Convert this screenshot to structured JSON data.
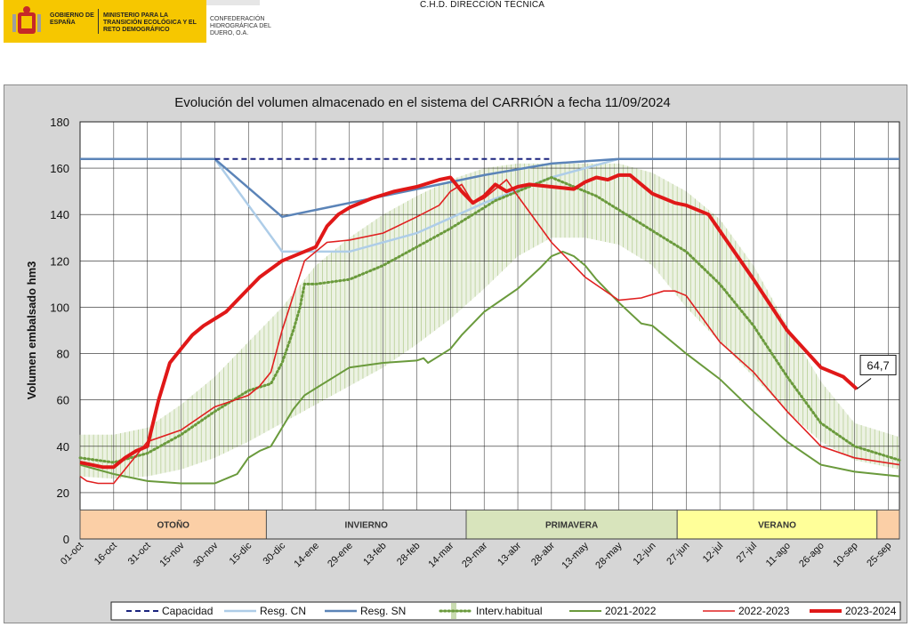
{
  "header": {
    "gov_line1": "GOBIERNO DE ESPAÑA",
    "gov_line2": "MINISTERIO PARA LA TRANSICIÓN ECOLÓGICA Y EL RETO DEMOGRÁFICO",
    "confederacion": "CONFEDERACIÓN HIDROGRÁFICA DEL DUERO, O.A.",
    "top_title": "C.H.D. DIRECCIÓN TÉCNICA"
  },
  "colors": {
    "background": "#d6d6d6",
    "capacidad": "#1a237e",
    "resg_cn": "#aecde8",
    "resg_sn": "#5b84b8",
    "interv": "#6a9a3c",
    "interv_band": "#c9dbb0",
    "s2021": "#6a9a3c",
    "s2022": "#e02020",
    "s2023": "#e01818",
    "otono": "#fbcfa6",
    "invierno": "#d9d9d9",
    "primavera": "#d8e4bc",
    "verano": "#ffff99"
  },
  "chart_data": {
    "type": "line",
    "title": "Evolución del volumen almacenado en el sistema del CARRIÓN a fecha 11/09/2024",
    "ylabel": "Volumen embalsado hm3",
    "ylim": [
      0,
      180
    ],
    "yticks": [
      "0",
      "20",
      "40",
      "60",
      "80",
      "100",
      "120",
      "140",
      "160",
      "180"
    ],
    "xlim": [
      0,
      365
    ],
    "xtick_labels": [
      "01-oct",
      "16-oct",
      "31-oct",
      "15-nov",
      "30-nov",
      "15-dic",
      "30-dic",
      "14-ene",
      "29-ene",
      "13-feb",
      "28-feb",
      "14-mar",
      "29-mar",
      "13-abr",
      "28-abr",
      "13-may",
      "28-may",
      "12-jun",
      "27-jun",
      "12-jul",
      "27-jul",
      "11-ago",
      "26-ago",
      "10-sep",
      "25-sep"
    ],
    "xtick_days": [
      0,
      15,
      30,
      45,
      60,
      75,
      90,
      105,
      120,
      135,
      150,
      165,
      180,
      195,
      210,
      225,
      240,
      255,
      270,
      285,
      300,
      315,
      330,
      345,
      360
    ],
    "seasons": [
      {
        "label": "OTOÑO",
        "start": 0,
        "end": 83,
        "color_key": "otono"
      },
      {
        "label": "INVIERNO",
        "start": 83,
        "end": 172,
        "color_key": "invierno"
      },
      {
        "label": "PRIMAVERA",
        "start": 172,
        "end": 266,
        "color_key": "primavera"
      },
      {
        "label": "VERANO",
        "start": 266,
        "end": 355,
        "color_key": "verano"
      },
      {
        "label": "",
        "start": 355,
        "end": 365,
        "color_key": "otono"
      }
    ],
    "annotation": {
      "label": "64,7",
      "day": 346,
      "value": 64.7
    },
    "band": {
      "name": "Interv.habitual",
      "x": [
        0,
        15,
        30,
        45,
        60,
        75,
        90,
        105,
        120,
        135,
        150,
        165,
        180,
        195,
        210,
        225,
        240,
        255,
        270,
        285,
        300,
        315,
        330,
        345,
        365
      ],
      "lower": [
        27,
        26,
        27,
        30,
        35,
        42,
        50,
        58,
        66,
        74,
        84,
        95,
        108,
        122,
        130,
        130,
        127,
        118,
        100,
        85,
        70,
        55,
        42,
        34,
        30
      ],
      "upper": [
        45,
        45,
        48,
        58,
        70,
        85,
        100,
        118,
        130,
        140,
        148,
        155,
        160,
        162,
        162,
        162,
        162,
        158,
        150,
        138,
        118,
        92,
        68,
        50,
        44
      ]
    },
    "series": [
      {
        "name": "Capacidad",
        "key": "capacidad",
        "x": [
          60,
          210
        ],
        "y": [
          164,
          164
        ]
      },
      {
        "name": "Resg. CN",
        "key": "resg_cn",
        "x": [
          0,
          60,
          90,
          120,
          150,
          180,
          210,
          240,
          365
        ],
        "y": [
          164,
          164,
          124,
          124,
          132,
          145,
          156,
          164,
          164
        ]
      },
      {
        "name": "Resg. SN",
        "key": "resg_sn",
        "x": [
          0,
          60,
          90,
          120,
          150,
          180,
          210,
          240,
          365
        ],
        "y": [
          164,
          164,
          139,
          145,
          151,
          157,
          162,
          164,
          164
        ]
      },
      {
        "name": "Interv.habitual",
        "key": "interv",
        "x": [
          0,
          15,
          30,
          45,
          60,
          75,
          85,
          90,
          95,
          98,
          100,
          105,
          120,
          135,
          150,
          165,
          175,
          185,
          195,
          205,
          210,
          220,
          230,
          240,
          250,
          255,
          270,
          285,
          300,
          315,
          330,
          345,
          365
        ],
        "y": [
          35,
          33,
          37,
          45,
          55,
          64,
          67,
          76,
          90,
          100,
          110,
          110,
          112,
          118,
          126,
          134,
          140,
          146,
          150,
          154,
          156,
          152,
          148,
          142,
          136,
          133,
          124,
          110,
          92,
          70,
          50,
          40,
          34
        ]
      },
      {
        "name": "2021-2022",
        "key": "s2021",
        "x": [
          0,
          15,
          30,
          45,
          60,
          70,
          75,
          80,
          85,
          90,
          95,
          100,
          105,
          120,
          135,
          150,
          153,
          155,
          160,
          165,
          170,
          175,
          180,
          195,
          205,
          210,
          215,
          220,
          225,
          230,
          240,
          250,
          255,
          265,
          270,
          285,
          300,
          315,
          330,
          345,
          365
        ],
        "y": [
          32,
          28,
          25,
          24,
          24,
          28,
          35,
          38,
          40,
          48,
          56,
          62,
          65,
          74,
          76,
          77,
          78,
          76,
          79,
          82,
          88,
          93,
          98,
          108,
          117,
          122,
          124,
          122,
          118,
          112,
          102,
          93,
          92,
          84,
          80,
          69,
          55,
          42,
          32,
          29,
          27
        ]
      },
      {
        "name": "2022-2023",
        "key": "s2022",
        "x": [
          0,
          3,
          8,
          15,
          20,
          25,
          30,
          45,
          60,
          75,
          80,
          85,
          90,
          100,
          110,
          120,
          135,
          150,
          160,
          165,
          170,
          175,
          180,
          190,
          195,
          210,
          225,
          240,
          250,
          260,
          265,
          270,
          285,
          300,
          315,
          330,
          345,
          365
        ],
        "y": [
          27,
          25,
          24,
          24,
          30,
          36,
          42,
          47,
          57,
          62,
          66,
          72,
          90,
          120,
          128,
          129,
          132,
          139,
          144,
          150,
          153,
          145,
          147,
          155,
          148,
          128,
          113,
          103,
          104,
          107,
          107,
          105,
          85,
          72,
          55,
          40,
          35,
          32
        ]
      },
      {
        "name": "2023-2024",
        "key": "s2023",
        "x": [
          0,
          5,
          10,
          15,
          20,
          25,
          30,
          35,
          40,
          45,
          50,
          55,
          60,
          65,
          70,
          75,
          80,
          90,
          105,
          110,
          115,
          120,
          130,
          140,
          150,
          160,
          165,
          170,
          175,
          180,
          185,
          190,
          195,
          200,
          210,
          220,
          225,
          230,
          235,
          240,
          245,
          255,
          260,
          265,
          270,
          280,
          285,
          300,
          315,
          330,
          340,
          346
        ],
        "y": [
          33,
          32,
          31,
          31,
          35,
          38,
          40,
          60,
          76,
          82,
          88,
          92,
          95,
          98,
          103,
          108,
          113,
          120,
          126,
          135,
          140,
          143,
          147,
          150,
          152,
          155,
          156,
          150,
          145,
          148,
          153,
          150,
          152,
          153,
          152,
          151,
          154,
          156,
          155,
          157,
          157,
          149,
          147,
          145,
          144,
          140,
          133,
          112,
          90,
          74,
          70,
          64.7
        ]
      }
    ]
  },
  "legend": [
    {
      "label": "Capacidad",
      "key": "capacidad",
      "style": "dash"
    },
    {
      "label": "Resg. CN",
      "key": "resg_cn",
      "style": "solid"
    },
    {
      "label": "Resg. SN",
      "key": "resg_sn",
      "style": "solid"
    },
    {
      "label": "Interv.habitual",
      "key": "interv",
      "style": "dots"
    },
    {
      "label": "2021-2022",
      "key": "s2021",
      "style": "solid"
    },
    {
      "label": "2022-2023",
      "key": "s2022",
      "style": "solid"
    },
    {
      "label": "2023-2024",
      "key": "s2023",
      "style": "thick"
    }
  ]
}
